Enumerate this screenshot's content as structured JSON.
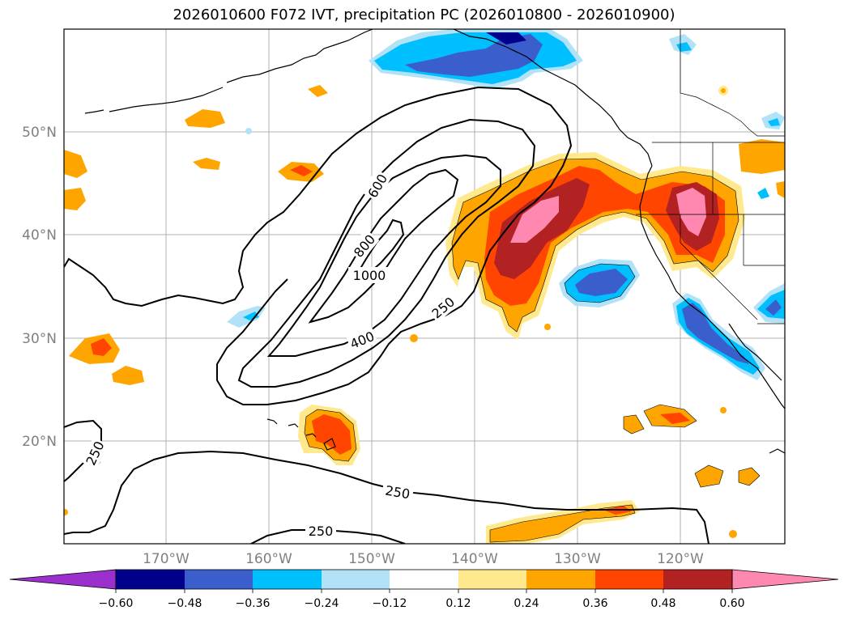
{
  "title": "2026010600 F072 IVT, precipitation PC (2026010800 - 2026010900)",
  "map": {
    "lat_labels": [
      "50°N",
      "40°N",
      "30°N",
      "20°N"
    ],
    "lon_labels": [
      "170°W",
      "160°W",
      "150°W",
      "140°W",
      "130°W",
      "120°W"
    ],
    "contour_labels": [
      "600",
      "800",
      "1000",
      "400",
      "250",
      "250",
      "250",
      "250"
    ]
  },
  "colorbar": {
    "ticks": [
      "−0.60",
      "−0.48",
      "−0.36",
      "−0.24",
      "−0.12",
      "0.12",
      "0.24",
      "0.36",
      "0.48",
      "0.60"
    ],
    "colors": [
      "#9b30cc",
      "#00008b",
      "#3a5fcd",
      "#00bfff",
      "#b2e2f8",
      "#ffffff",
      "#ffe98c",
      "#ffa500",
      "#ff4500",
      "#b22222",
      "#ff88b0"
    ]
  },
  "colors": {
    "light_blue": "#b2e2f8",
    "blue": "#00bfff",
    "royal": "#3a5fcd",
    "yellow": "#ffe98c",
    "orange": "#ffa500",
    "red_orange": "#ff4500",
    "firebrick": "#b22222",
    "pink": "#ff88b0"
  }
}
